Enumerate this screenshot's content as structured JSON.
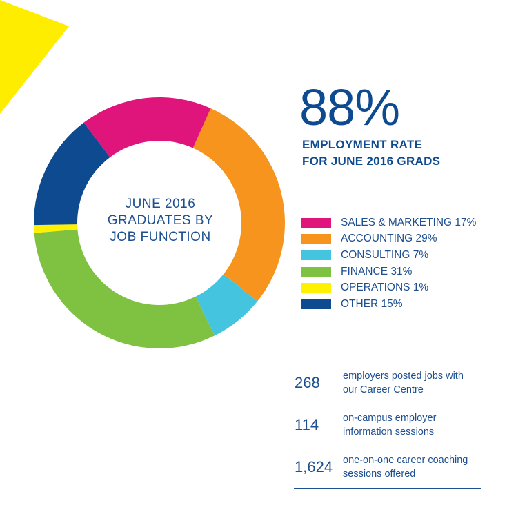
{
  "colors": {
    "corner_triangle": "#ffed00",
    "text_primary": "#1d4f91",
    "divider": "#1d4f91"
  },
  "chart_data": {
    "type": "pie",
    "style": "donut",
    "title_lines": [
      "JUNE 2016",
      "GRADUATES BY",
      "JOB FUNCTION"
    ],
    "slices": [
      {
        "label": "SALES & MARKETING",
        "value": 17,
        "color": "#e0157c"
      },
      {
        "label": "ACCOUNTING",
        "value": 29,
        "color": "#f7941d"
      },
      {
        "label": "CONSULTING",
        "value": 7,
        "color": "#45c4e0"
      },
      {
        "label": "FINANCE",
        "value": 31,
        "color": "#7fc241"
      },
      {
        "label": "OPERATIONS",
        "value": 1,
        "color": "#fff200"
      },
      {
        "label": "OTHER",
        "value": 15,
        "color": "#0e4a8f"
      }
    ],
    "legend": {
      "position": "right",
      "items": [
        "SALES & MARKETING 17%",
        "ACCOUNTING 29%",
        "CONSULTING 7%",
        "FINANCE 31%",
        "OPERATIONS 1%",
        "OTHER 15%"
      ]
    }
  },
  "headline": {
    "value": "88%",
    "caption_lines": [
      "EMPLOYMENT RATE",
      "FOR JUNE 2016 GRADS"
    ]
  },
  "facts": [
    {
      "number": "268",
      "text_lines": [
        "employers posted jobs with",
        "our Career Centre"
      ]
    },
    {
      "number": "114",
      "text_lines": [
        "on-campus employer",
        "information sessions"
      ]
    },
    {
      "number": "1,624",
      "text_lines": [
        "one-on-one career coaching",
        "sessions offered"
      ]
    }
  ]
}
